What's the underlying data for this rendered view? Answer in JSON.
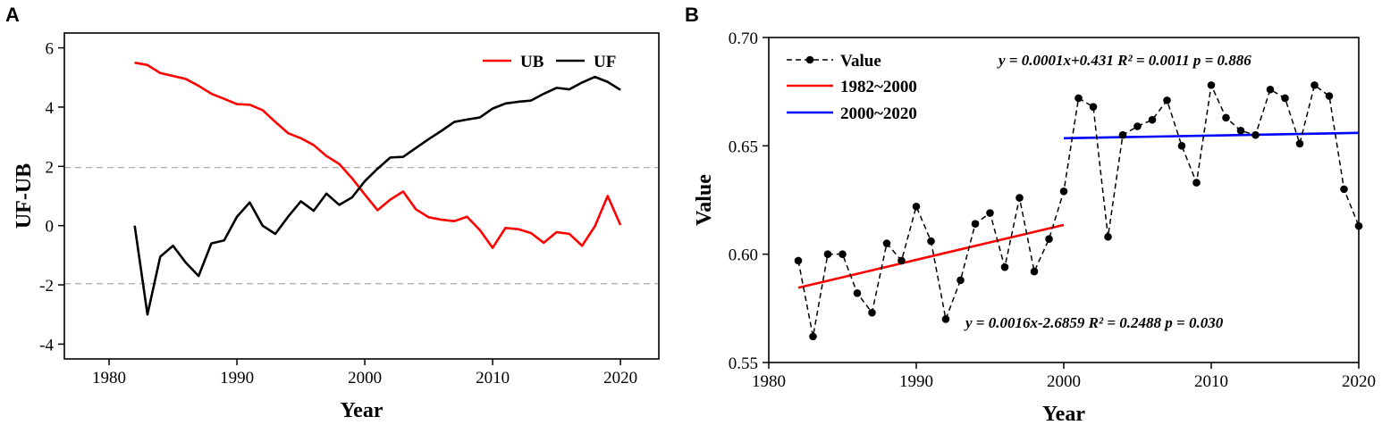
{
  "chart_data": [
    {
      "panel": "A",
      "type": "line",
      "title": "",
      "xlabel": "Year",
      "ylabel": "UF-UB",
      "xlim": [
        1976.5,
        2023
      ],
      "ylim": [
        -4.5,
        6.5
      ],
      "xticks": [
        1980,
        1990,
        2000,
        2010,
        2020
      ],
      "xtick_labels": [
        "1980",
        "1990",
        "2000",
        "2010",
        "2020"
      ],
      "yticks": [
        -4,
        -2,
        0,
        2,
        4,
        6
      ],
      "ytick_labels": [
        "-4",
        "-2",
        "0",
        "2",
        "4",
        "6"
      ],
      "reference_lines": [
        1.96,
        -1.96
      ],
      "legend": "top-right",
      "x": [
        1982,
        1983,
        1984,
        1985,
        1986,
        1987,
        1988,
        1989,
        1990,
        1991,
        1992,
        1993,
        1994,
        1995,
        1996,
        1997,
        1998,
        1999,
        2000,
        2001,
        2002,
        2003,
        2004,
        2005,
        2006,
        2007,
        2008,
        2009,
        2010,
        2011,
        2012,
        2013,
        2014,
        2015,
        2016,
        2017,
        2018,
        2019,
        2020
      ],
      "series": [
        {
          "name": "UB",
          "color": "#ff0000",
          "values": [
            5.5,
            5.42,
            5.15,
            5.05,
            4.95,
            4.72,
            4.45,
            4.28,
            4.1,
            4.08,
            3.9,
            3.5,
            3.12,
            2.95,
            2.72,
            2.35,
            2.08,
            1.6,
            1.05,
            0.52,
            0.88,
            1.15,
            0.55,
            0.28,
            0.2,
            0.15,
            0.3,
            -0.15,
            -0.75,
            -0.08,
            -0.12,
            -0.25,
            -0.58,
            -0.22,
            -0.28,
            -0.68,
            -0.02,
            1.0,
            0.02
          ]
        },
        {
          "name": "UF",
          "color": "#000000",
          "values": [
            0.0,
            -3.0,
            -1.05,
            -0.68,
            -1.25,
            -1.7,
            -0.6,
            -0.5,
            0.3,
            0.78,
            0.0,
            -0.28,
            0.3,
            0.82,
            0.5,
            1.08,
            0.7,
            0.95,
            1.5,
            1.92,
            2.3,
            2.32,
            2.62,
            2.92,
            3.2,
            3.5,
            3.58,
            3.65,
            3.95,
            4.12,
            4.18,
            4.22,
            4.45,
            4.65,
            4.6,
            4.83,
            5.02,
            4.85,
            4.58
          ]
        }
      ]
    },
    {
      "panel": "B",
      "type": "line",
      "title": "",
      "xlabel": "Year",
      "ylabel": "Value",
      "xlim": [
        1980,
        2020
      ],
      "ylim": [
        0.55,
        0.7
      ],
      "xticks": [
        1980,
        1990,
        2000,
        2010,
        2020
      ],
      "xtick_labels": [
        "1980",
        "1990",
        "2000",
        "2010",
        "2020"
      ],
      "yticks": [
        0.55,
        0.6,
        0.65,
        0.7
      ],
      "ytick_labels": [
        "0.55",
        "0.60",
        "0.65",
        "0.70"
      ],
      "legend": "top-left",
      "series": [
        {
          "name": "Value",
          "color": "#000000",
          "style": "dashed-markers",
          "x": [
            1982,
            1983,
            1984,
            1985,
            1986,
            1987,
            1988,
            1989,
            1990,
            1991,
            1992,
            1993,
            1994,
            1995,
            1996,
            1997,
            1998,
            1999,
            2000,
            2001,
            2002,
            2003,
            2004,
            2005,
            2006,
            2007,
            2008,
            2009,
            2010,
            2011,
            2012,
            2013,
            2014,
            2015,
            2016,
            2017,
            2018,
            2019,
            2020
          ],
          "values": [
            0.597,
            0.562,
            0.6,
            0.6,
            0.582,
            0.573,
            0.605,
            0.597,
            0.622,
            0.606,
            0.57,
            0.588,
            0.614,
            0.619,
            0.594,
            0.626,
            0.592,
            0.607,
            0.629,
            0.672,
            0.668,
            0.608,
            0.655,
            0.659,
            0.662,
            0.671,
            0.65,
            0.633,
            0.678,
            0.663,
            0.657,
            0.655,
            0.676,
            0.672,
            0.651,
            0.678,
            0.673,
            0.63,
            0.613
          ]
        },
        {
          "name": "1982~2000",
          "color": "#ff0000",
          "style": "trend",
          "x": [
            1982,
            2000
          ],
          "values": [
            0.5845,
            0.6135
          ]
        },
        {
          "name": "2000~2020",
          "color": "#0000ff",
          "style": "trend",
          "x": [
            2000,
            2020
          ],
          "values": [
            0.6535,
            0.656
          ]
        }
      ],
      "annotations": {
        "fit_2000_2020": "y = 0.0001x+0.431   R² = 0.0011   p = 0.886",
        "fit_1982_2000": "y = 0.0016x-2.6859   R² = 0.2488   p = 0.030"
      }
    }
  ]
}
